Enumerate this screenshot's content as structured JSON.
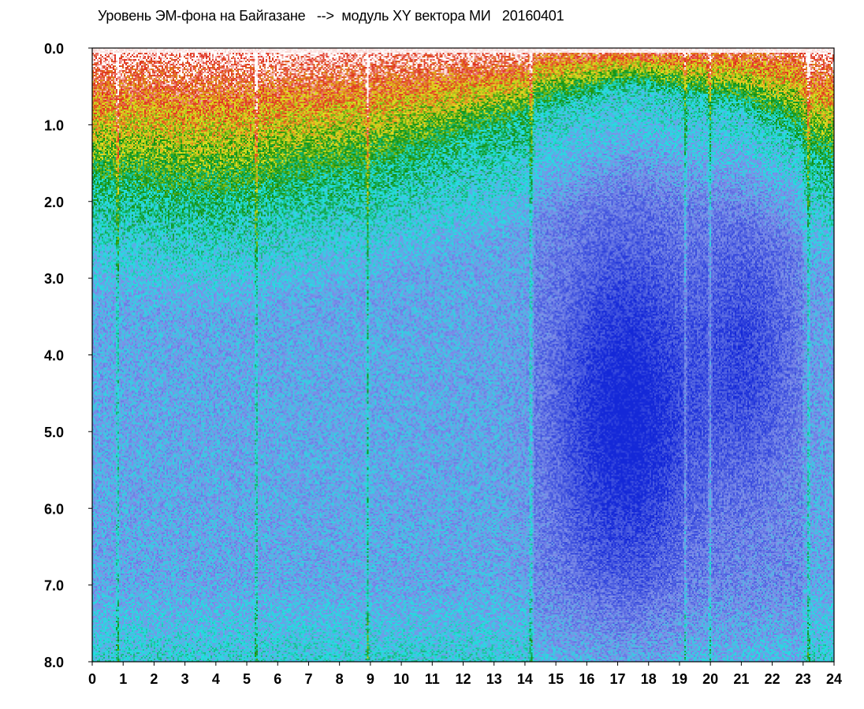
{
  "chart_data": {
    "type": "heatmap",
    "title": "Уровень ЭМ-фона на Байгазане   -->  модуль XY вектора МИ   20160401",
    "x_ticks": [
      "0",
      "1",
      "2",
      "3",
      "4",
      "5",
      "6",
      "7",
      "8",
      "9",
      "10",
      "11",
      "12",
      "13",
      "14",
      "15",
      "16",
      "17",
      "18",
      "19",
      "20",
      "21",
      "22",
      "23",
      "24"
    ],
    "y_ticks": [
      "0.0",
      "1.0",
      "2.0",
      "3.0",
      "4.0",
      "5.0",
      "6.0",
      "7.0",
      "8.0"
    ],
    "xlim": [
      0,
      24
    ],
    "ylim": [
      0,
      8
    ],
    "y_inverted": true,
    "colorscale": [
      "#ffffff",
      "#e03020",
      "#e0e020",
      "#109010",
      "#20e0e0",
      "#7f8fe8",
      "#1428d8"
    ],
    "intensity_by_hour": [
      {
        "x": 0,
        "upper_band_depth": 1.8,
        "background": "light-blue"
      },
      {
        "x": 4,
        "upper_band_depth": 2.0,
        "background": "light-blue"
      },
      {
        "x": 9,
        "upper_band_depth": 1.6,
        "background": "light-blue"
      },
      {
        "x": 14,
        "upper_band_depth": 0.9,
        "background": "blue"
      },
      {
        "x": 17.5,
        "upper_band_depth": 0.5,
        "background": "dark-blue"
      },
      {
        "x": 21,
        "upper_band_depth": 0.8,
        "background": "blue"
      },
      {
        "x": 24,
        "upper_band_depth": 1.5,
        "background": "light-blue"
      }
    ],
    "vertical_streaks_x": [
      0.8,
      5.3,
      8.9,
      14.2,
      19.2,
      20.0,
      23.2
    ]
  }
}
